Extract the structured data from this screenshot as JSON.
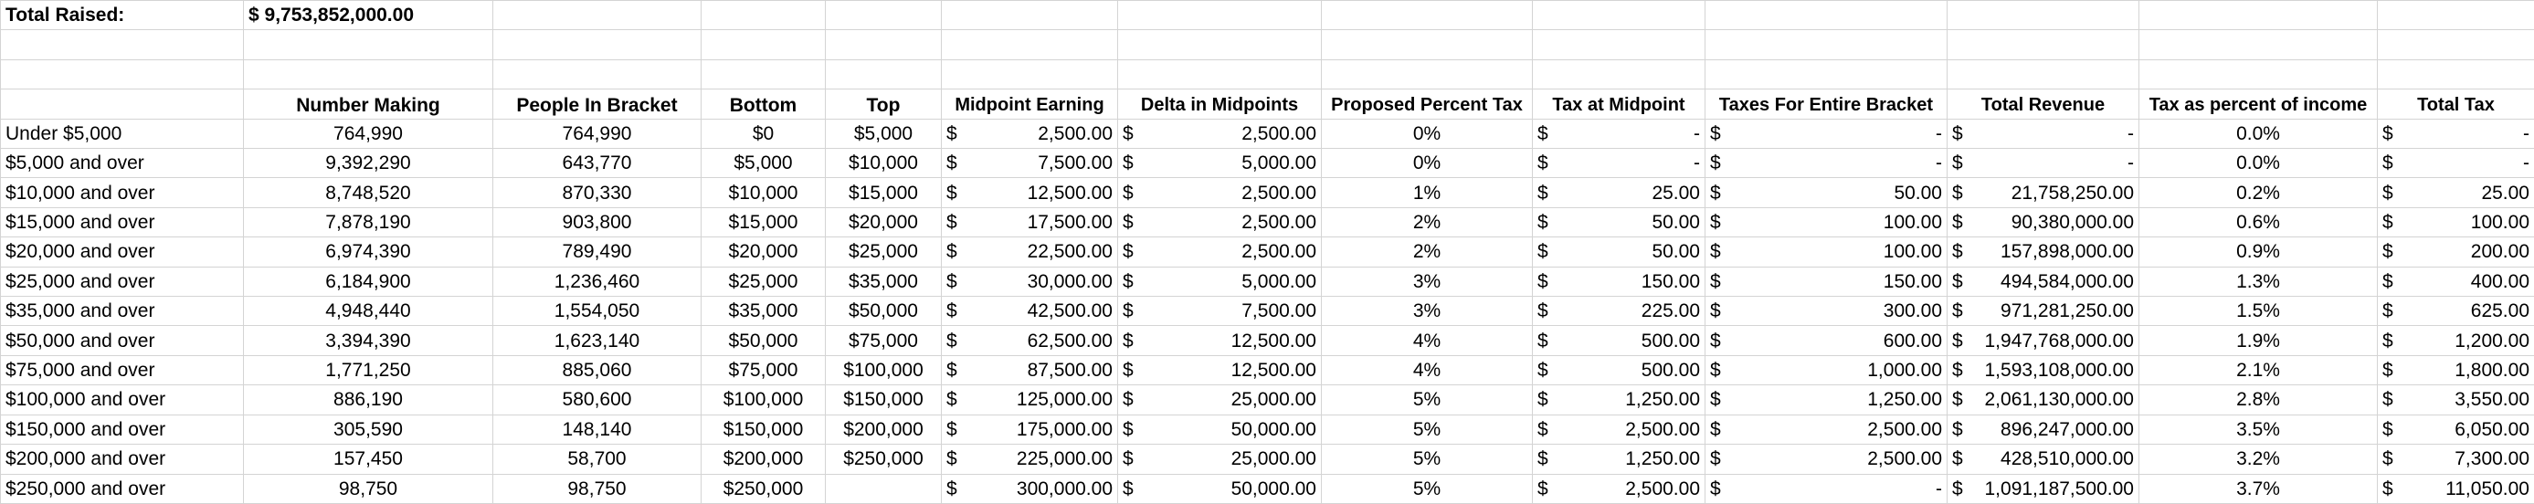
{
  "summary": {
    "label": "Total Raised:",
    "value": "$ 9,753,852,000.00"
  },
  "headers": [
    "",
    "Number Making",
    "People In Bracket",
    "Bottom",
    "Top",
    "Midpoint Earning",
    "Delta in Midpoints",
    "Proposed Percent Tax",
    "Tax at Midpoint",
    "Taxes For Entire Bracket",
    "Total Revenue",
    "Tax as percent of income",
    "Total Tax"
  ],
  "rows": [
    {
      "label": "Under $5,000",
      "number_making": "764,990",
      "people_in_bracket": "764,990",
      "bottom": "$0",
      "top": "$5,000",
      "midpoint": "2,500.00",
      "delta": "2,500.00",
      "pct_tax": "0%",
      "tax_mid": "-",
      "tax_bracket": "-",
      "total_revenue": "-",
      "tax_pct_income": "0.0%",
      "total_tax": "-"
    },
    {
      "label": "$5,000 and over",
      "number_making": "9,392,290",
      "people_in_bracket": "643,770",
      "bottom": "$5,000",
      "top": "$10,000",
      "midpoint": "7,500.00",
      "delta": "5,000.00",
      "pct_tax": "0%",
      "tax_mid": "-",
      "tax_bracket": "-",
      "total_revenue": "-",
      "tax_pct_income": "0.0%",
      "total_tax": "-"
    },
    {
      "label": "$10,000 and over",
      "number_making": "8,748,520",
      "people_in_bracket": "870,330",
      "bottom": "$10,000",
      "top": "$15,000",
      "midpoint": "12,500.00",
      "delta": "2,500.00",
      "pct_tax": "1%",
      "tax_mid": "25.00",
      "tax_bracket": "50.00",
      "total_revenue": "21,758,250.00",
      "tax_pct_income": "0.2%",
      "total_tax": "25.00"
    },
    {
      "label": "$15,000 and over",
      "number_making": "7,878,190",
      "people_in_bracket": "903,800",
      "bottom": "$15,000",
      "top": "$20,000",
      "midpoint": "17,500.00",
      "delta": "2,500.00",
      "pct_tax": "2%",
      "tax_mid": "50.00",
      "tax_bracket": "100.00",
      "total_revenue": "90,380,000.00",
      "tax_pct_income": "0.6%",
      "total_tax": "100.00"
    },
    {
      "label": "$20,000 and over",
      "number_making": "6,974,390",
      "people_in_bracket": "789,490",
      "bottom": "$20,000",
      "top": "$25,000",
      "midpoint": "22,500.00",
      "delta": "2,500.00",
      "pct_tax": "2%",
      "tax_mid": "50.00",
      "tax_bracket": "100.00",
      "total_revenue": "157,898,000.00",
      "tax_pct_income": "0.9%",
      "total_tax": "200.00"
    },
    {
      "label": "$25,000 and over",
      "number_making": "6,184,900",
      "people_in_bracket": "1,236,460",
      "bottom": "$25,000",
      "top": "$35,000",
      "midpoint": "30,000.00",
      "delta": "5,000.00",
      "pct_tax": "3%",
      "tax_mid": "150.00",
      "tax_bracket": "150.00",
      "total_revenue": "494,584,000.00",
      "tax_pct_income": "1.3%",
      "total_tax": "400.00"
    },
    {
      "label": "$35,000 and over",
      "number_making": "4,948,440",
      "people_in_bracket": "1,554,050",
      "bottom": "$35,000",
      "top": "$50,000",
      "midpoint": "42,500.00",
      "delta": "7,500.00",
      "pct_tax": "3%",
      "tax_mid": "225.00",
      "tax_bracket": "300.00",
      "total_revenue": "971,281,250.00",
      "tax_pct_income": "1.5%",
      "total_tax": "625.00"
    },
    {
      "label": "$50,000 and over",
      "number_making": "3,394,390",
      "people_in_bracket": "1,623,140",
      "bottom": "$50,000",
      "top": "$75,000",
      "midpoint": "62,500.00",
      "delta": "12,500.00",
      "pct_tax": "4%",
      "tax_mid": "500.00",
      "tax_bracket": "600.00",
      "total_revenue": "1,947,768,000.00",
      "tax_pct_income": "1.9%",
      "total_tax": "1,200.00"
    },
    {
      "label": "$75,000 and over",
      "number_making": "1,771,250",
      "people_in_bracket": "885,060",
      "bottom": "$75,000",
      "top": "$100,000",
      "midpoint": "87,500.00",
      "delta": "12,500.00",
      "pct_tax": "4%",
      "tax_mid": "500.00",
      "tax_bracket": "1,000.00",
      "total_revenue": "1,593,108,000.00",
      "tax_pct_income": "2.1%",
      "total_tax": "1,800.00"
    },
    {
      "label": "$100,000 and over",
      "number_making": "886,190",
      "people_in_bracket": "580,600",
      "bottom": "$100,000",
      "top": "$150,000",
      "midpoint": "125,000.00",
      "delta": "25,000.00",
      "pct_tax": "5%",
      "tax_mid": "1,250.00",
      "tax_bracket": "1,250.00",
      "total_revenue": "2,061,130,000.00",
      "tax_pct_income": "2.8%",
      "total_tax": "3,550.00"
    },
    {
      "label": "$150,000 and over",
      "number_making": "305,590",
      "people_in_bracket": "148,140",
      "bottom": "$150,000",
      "top": "$200,000",
      "midpoint": "175,000.00",
      "delta": "50,000.00",
      "pct_tax": "5%",
      "tax_mid": "2,500.00",
      "tax_bracket": "2,500.00",
      "total_revenue": "896,247,000.00",
      "tax_pct_income": "3.5%",
      "total_tax": "6,050.00"
    },
    {
      "label": "$200,000 and over",
      "number_making": "157,450",
      "people_in_bracket": "58,700",
      "bottom": "$200,000",
      "top": "$250,000",
      "midpoint": "225,000.00",
      "delta": "25,000.00",
      "pct_tax": "5%",
      "tax_mid": "1,250.00",
      "tax_bracket": "2,500.00",
      "total_revenue": "428,510,000.00",
      "tax_pct_income": "3.2%",
      "total_tax": "7,300.00"
    },
    {
      "label": "$250,000 and over",
      "number_making": "98,750",
      "people_in_bracket": "98,750",
      "bottom": "$250,000",
      "top": "",
      "midpoint": "300,000.00",
      "delta": "50,000.00",
      "pct_tax": "5%",
      "tax_mid": "2,500.00",
      "tax_bracket": "-",
      "total_revenue": "1,091,187,500.00",
      "tax_pct_income": "3.7%",
      "total_tax": "11,050.00"
    }
  ],
  "currency_symbol": "$"
}
